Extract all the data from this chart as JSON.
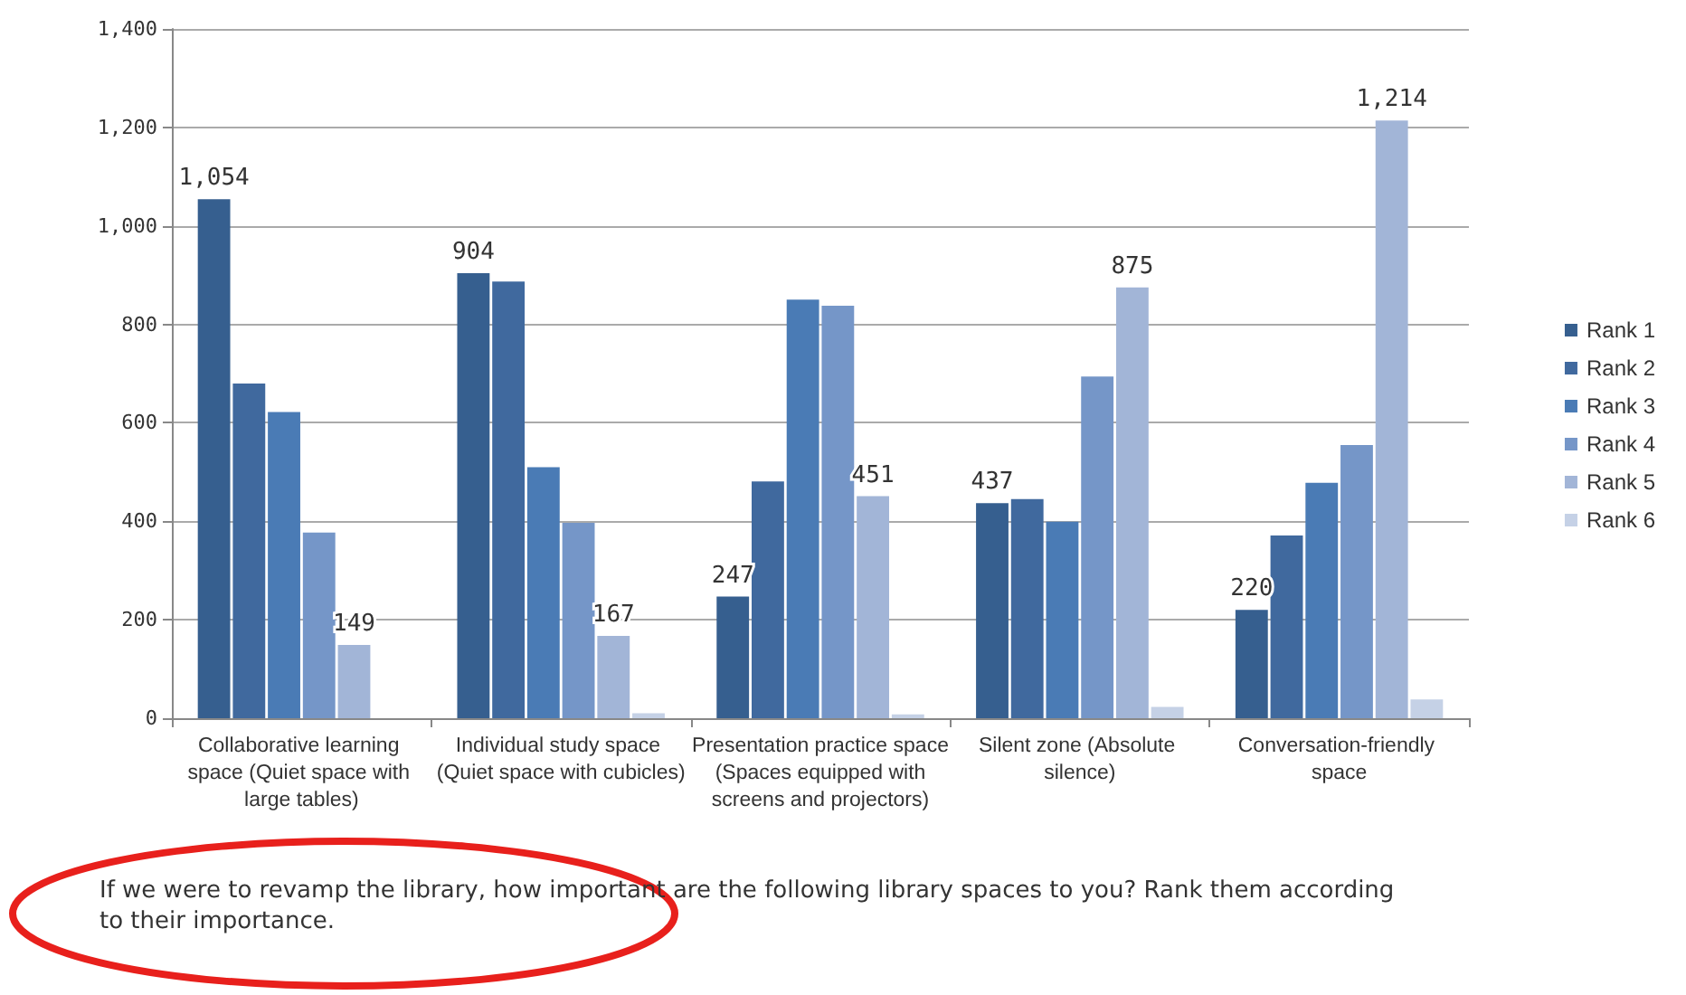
{
  "chart_data": {
    "type": "bar",
    "categories": [
      "Collaborative learning space (Quiet space with large tables)",
      "Individual study space (Quiet space with cubicles)",
      "Presentation practice space (Spaces equipped with screens and projectors)",
      "Silent zone (Absolute silence)",
      "Conversation-friendly space"
    ],
    "series": [
      {
        "name": "Rank 1",
        "color": "#365f8f",
        "values": [
          1054,
          904,
          247,
          437,
          220
        ],
        "value_labels": [
          "1,054",
          "904",
          "247",
          "437",
          "220"
        ]
      },
      {
        "name": "Rank 2",
        "color": "#40699e",
        "values": [
          680,
          887,
          481,
          445,
          371
        ]
      },
      {
        "name": "Rank 3",
        "color": "#4a7bb5",
        "values": [
          622,
          510,
          850,
          399,
          478
        ]
      },
      {
        "name": "Rank 4",
        "color": "#7596c8",
        "values": [
          377,
          397,
          838,
          694,
          555
        ]
      },
      {
        "name": "Rank 5",
        "color": "#a2b5d7",
        "values": [
          149,
          167,
          451,
          875,
          1214
        ],
        "value_labels": [
          "149",
          "167",
          "451",
          "875",
          "1,214"
        ]
      },
      {
        "name": "Rank 6",
        "color": "#c5d1e6",
        "values": [
          0,
          10,
          8,
          23,
          38
        ]
      }
    ],
    "ylim": [
      0,
      1400
    ],
    "yticks": [
      0,
      200,
      400,
      600,
      800,
      {
        "value": 1000,
        "label": "1,000"
      },
      {
        "value": 1200,
        "label": "1,200"
      },
      {
        "value": 1400,
        "label": "1,400"
      }
    ],
    "grid": "y",
    "legend": "right",
    "annotations": [
      "If we were to revamp the library, how important are the following library spaces to you? Rank them according to their importance."
    ]
  }
}
